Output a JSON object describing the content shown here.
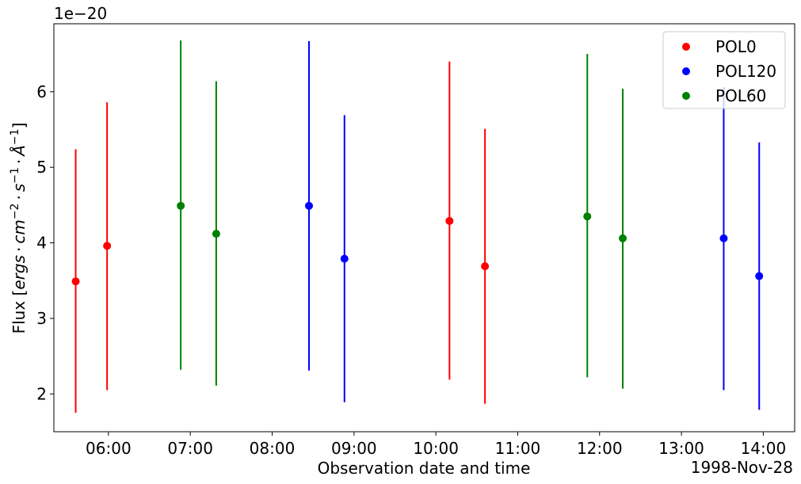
{
  "chart_data": {
    "type": "scatter",
    "title": "",
    "xlabel": "Observation date and time",
    "ylabel_prefix": "Flux [",
    "ylabel_math": {
      "ergs": "ergs",
      "dot": "·",
      "cm": "cm",
      "cm_exp": "−2",
      "s": "s",
      "s_exp": "−1",
      "angstrom": "Å",
      "angstrom_exp": "−1"
    },
    "ylabel_suffix": "]",
    "y_scale_note": "1e−20",
    "x_date_label": "1998-Nov-28",
    "x_range": [
      "05:20",
      "14:23"
    ],
    "x_ticks": [
      "06:00",
      "07:00",
      "08:00",
      "09:00",
      "10:00",
      "11:00",
      "12:00",
      "13:00",
      "14:00"
    ],
    "ylim": [
      1.5,
      6.9
    ],
    "y_ticks": [
      "2",
      "3",
      "4",
      "5",
      "6"
    ],
    "grid": false,
    "legend_position": "top-right",
    "series": [
      {
        "name": "POL0",
        "color": "#ff0000",
        "points": [
          {
            "x": "05:36",
            "y": 3.49,
            "err_low": 1.75,
            "err_high": 5.24
          },
          {
            "x": "05:59",
            "y": 3.96,
            "err_low": 2.05,
            "err_high": 5.86
          },
          {
            "x": "10:10",
            "y": 4.29,
            "err_low": 2.19,
            "err_high": 6.4
          },
          {
            "x": "10:36",
            "y": 3.69,
            "err_low": 1.87,
            "err_high": 5.51
          }
        ]
      },
      {
        "name": "POL120",
        "color": "#0000ff",
        "points": [
          {
            "x": "08:27",
            "y": 4.49,
            "err_low": 2.31,
            "err_high": 6.67
          },
          {
            "x": "08:53",
            "y": 3.79,
            "err_low": 1.89,
            "err_high": 5.69
          },
          {
            "x": "13:31",
            "y": 4.06,
            "err_low": 2.05,
            "err_high": 6.06
          },
          {
            "x": "13:57",
            "y": 3.56,
            "err_low": 1.79,
            "err_high": 5.33
          }
        ]
      },
      {
        "name": "POL60",
        "color": "#008000",
        "points": [
          {
            "x": "06:53",
            "y": 4.49,
            "err_low": 2.32,
            "err_high": 6.68
          },
          {
            "x": "07:19",
            "y": 4.12,
            "err_low": 2.11,
            "err_high": 6.14
          },
          {
            "x": "11:51",
            "y": 4.35,
            "err_low": 2.22,
            "err_high": 6.5
          },
          {
            "x": "12:17",
            "y": 4.06,
            "err_low": 2.07,
            "err_high": 6.04
          }
        ]
      }
    ]
  }
}
